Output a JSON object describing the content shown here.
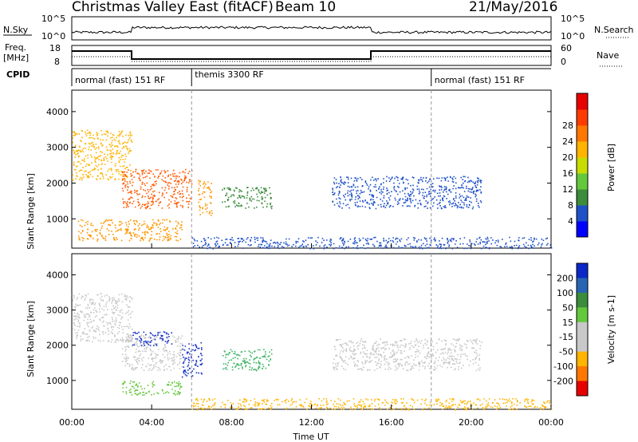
{
  "header": {
    "station": "Christmas Valley East (fitACF)",
    "beam": "Beam 10",
    "date": "21/May/2016"
  },
  "top_panels": {
    "nsky_label": "N.Sky",
    "nsearch_label": "N.Search",
    "freq_label_line1": "Freq.",
    "freq_label_line2": "[MHz]",
    "nave_label": "Nave",
    "cpid_label": "CPID",
    "left_ticks_row1": [
      "10^5",
      "10^0"
    ],
    "right_ticks_row1": [
      "10^5",
      "10^0"
    ],
    "left_ticks_row2": [
      "18",
      "8"
    ],
    "right_ticks_row2": [
      "60",
      "0"
    ],
    "cpid_modes": [
      {
        "label": "normal (fast) 151 RF",
        "start_h": 0,
        "end_h": 6
      },
      {
        "label": "themis 3300 RF",
        "start_h": 6,
        "end_h": 18
      },
      {
        "label": "normal (fast) 151 RF",
        "start_h": 18,
        "end_h": 24
      }
    ]
  },
  "chart_data": [
    {
      "type": "heatmap",
      "name_panel": "power",
      "ylabel": "Slant Range [km]",
      "xlabel": "Time UT",
      "x_ticks": [
        "00:00",
        "04:00",
        "08:00",
        "12:00",
        "16:00",
        "20:00",
        "00:00"
      ],
      "x_range_hours": [
        0,
        24
      ],
      "y_ticks": [
        1000,
        2000,
        3000,
        4000
      ],
      "y_range_km": [
        180,
        4600
      ],
      "colorbar": {
        "label": "Power [dB]",
        "ticks": [
          "4",
          "8",
          "12",
          "16",
          "20",
          "24",
          "28"
        ],
        "colors": [
          "#0000ff",
          "#1e50c8",
          "#3c8c3c",
          "#64c83c",
          "#c8dc00",
          "#ffb400",
          "#ff7800",
          "#ff3c00",
          "#e60000"
        ]
      },
      "scatter_regions": [
        {
          "t0": 0.0,
          "t1": 3.0,
          "r0": 2100,
          "r1": 3500,
          "color": "#ffb400"
        },
        {
          "t0": 2.5,
          "t1": 6.0,
          "r0": 1300,
          "r1": 2400,
          "color": "#ff5a00"
        },
        {
          "t0": 0.3,
          "t1": 5.5,
          "r0": 400,
          "r1": 1000,
          "color": "#ff9600"
        },
        {
          "t0": 6.3,
          "t1": 7.0,
          "r0": 1100,
          "r1": 2100,
          "color": "#ff9600"
        },
        {
          "t0": 7.5,
          "t1": 10.0,
          "r0": 1300,
          "r1": 1900,
          "color": "#3c8c3c"
        },
        {
          "t0": 13.0,
          "t1": 20.5,
          "r0": 1300,
          "r1": 2200,
          "color": "#1e50c8"
        },
        {
          "t0": 6.0,
          "t1": 24.0,
          "r0": 180,
          "r1": 500,
          "color": "#1e50c8"
        }
      ]
    },
    {
      "type": "heatmap",
      "name_panel": "velocity",
      "ylabel": "Slant Range [km]",
      "xlabel": "Time UT",
      "x_ticks": [
        "00:00",
        "04:00",
        "08:00",
        "12:00",
        "16:00",
        "20:00",
        "00:00"
      ],
      "x_range_hours": [
        0,
        24
      ],
      "y_ticks": [
        1000,
        2000,
        3000,
        4000
      ],
      "y_range_km": [
        180,
        4600
      ],
      "colorbar": {
        "label": "Velocity [m s-1]",
        "ticks": [
          "200",
          "100",
          "50",
          "15",
          "-15",
          "-50",
          "-100",
          "-200"
        ],
        "colors": [
          "#0a28c8",
          "#2864b4",
          "#3c8c3c",
          "#64c83c",
          "#c8c8c8",
          "#c8c8c8",
          "#ffb400",
          "#ff7800",
          "#e60000"
        ]
      },
      "scatter_regions": [
        {
          "t0": 0.0,
          "t1": 3.0,
          "r0": 2100,
          "r1": 3500,
          "color": "#c8c8c8"
        },
        {
          "t0": 2.5,
          "t1": 5.5,
          "r0": 1300,
          "r1": 2300,
          "color": "#c8c8c8"
        },
        {
          "t0": 3.0,
          "t1": 5.0,
          "r0": 2000,
          "r1": 2400,
          "color": "#1432c8"
        },
        {
          "t0": 2.5,
          "t1": 5.5,
          "r0": 600,
          "r1": 1000,
          "color": "#64c83c"
        },
        {
          "t0": 5.5,
          "t1": 6.5,
          "r0": 1100,
          "r1": 2100,
          "color": "#1432c8"
        },
        {
          "t0": 7.5,
          "t1": 10.0,
          "r0": 1300,
          "r1": 1900,
          "color": "#3cb464"
        },
        {
          "t0": 13.0,
          "t1": 20.5,
          "r0": 1300,
          "r1": 2200,
          "color": "#c8c8c8"
        },
        {
          "t0": 6.0,
          "t1": 24.0,
          "r0": 180,
          "r1": 500,
          "color": "#ffb400"
        }
      ]
    }
  ]
}
